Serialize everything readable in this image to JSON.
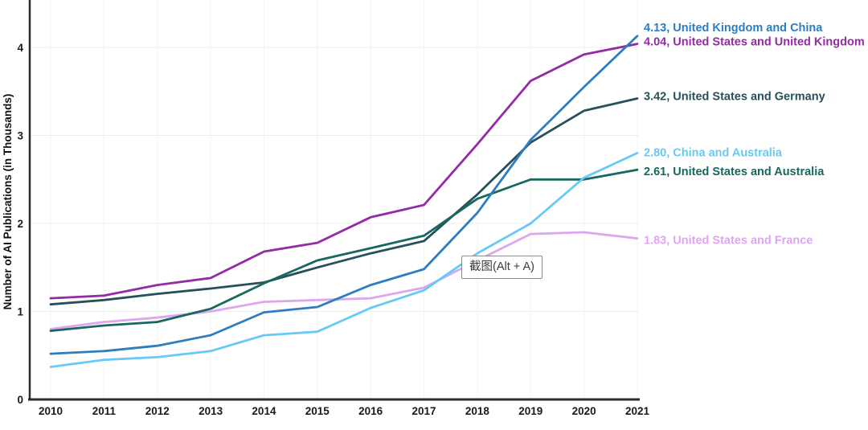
{
  "page": {
    "background": "#ffffff"
  },
  "tooltip": {
    "text": "截图(Alt + A)"
  },
  "chart_data": {
    "type": "line",
    "title": "",
    "xlabel": "",
    "ylabel": "Number of AI Publications (in Thousands)",
    "x": [
      2010,
      2011,
      2012,
      2013,
      2014,
      2015,
      2016,
      2017,
      2018,
      2019,
      2020,
      2021
    ],
    "yticks": [
      0,
      1,
      2,
      3,
      4
    ],
    "ylim": [
      0,
      4.54
    ],
    "xlim": [
      2010,
      2021
    ],
    "grid": true,
    "legend_position": "end-of-line-labels-right",
    "axis_color": "#2b2b2b",
    "tick_label_color": "#1a1a1a",
    "series": [
      {
        "name": "United Kingdom and China",
        "end_label": "4.13, United Kingdom and China",
        "final_value": 4.13,
        "color": "#2e7dbf",
        "values": [
          0.52,
          0.55,
          0.61,
          0.73,
          0.99,
          1.05,
          1.3,
          1.48,
          2.12,
          2.95,
          3.55,
          4.13
        ],
        "label_dy": -11,
        "z": 6
      },
      {
        "name": "United States and United Kingdom",
        "end_label": "4.04, United States and United Kingdom",
        "final_value": 4.04,
        "color": "#942aa5",
        "values": [
          1.15,
          1.18,
          1.3,
          1.38,
          1.68,
          1.78,
          2.07,
          2.21,
          2.9,
          3.62,
          3.92,
          4.04
        ],
        "label_dy": -3,
        "z": 4
      },
      {
        "name": "United States and Germany",
        "end_label": "3.42, United States and Germany",
        "final_value": 3.42,
        "color": "#27505a",
        "values": [
          1.08,
          1.13,
          1.2,
          1.26,
          1.33,
          1.5,
          1.66,
          1.8,
          2.33,
          2.92,
          3.28,
          3.42
        ],
        "label_dy": -3,
        "z": 2
      },
      {
        "name": "China and Australia",
        "end_label": "2.80, China and Australia",
        "final_value": 2.8,
        "color": "#67c9f5",
        "values": [
          0.37,
          0.45,
          0.48,
          0.55,
          0.73,
          0.77,
          1.04,
          1.24,
          1.66,
          2.0,
          2.52,
          2.8
        ],
        "label_dy": -1,
        "z": 5
      },
      {
        "name": "United States and Australia",
        "end_label": "2.61, United States and Australia",
        "final_value": 2.61,
        "color": "#17685e",
        "values": [
          0.78,
          0.84,
          0.88,
          1.03,
          1.32,
          1.58,
          1.72,
          1.86,
          2.28,
          2.5,
          2.5,
          2.61
        ],
        "label_dy": 2,
        "z": 3
      },
      {
        "name": "United States and France",
        "end_label": "1.83, United States and France",
        "final_value": 1.83,
        "color": "#dda6ef",
        "values": [
          0.8,
          0.88,
          0.93,
          1.0,
          1.11,
          1.13,
          1.15,
          1.27,
          1.58,
          1.88,
          1.9,
          1.83
        ],
        "label_dy": 2,
        "z": 1
      }
    ]
  }
}
